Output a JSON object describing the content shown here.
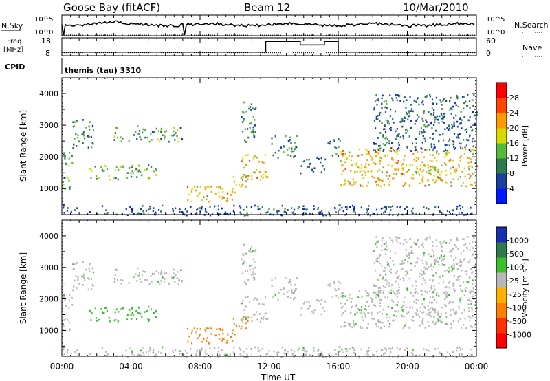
{
  "header": {
    "station": "Goose Bay (fitACF)",
    "beam": "Beam 12",
    "date": "10/Mar/2010"
  },
  "noise_panel": {
    "left_label": "N.Sky",
    "left_ticks": [
      "10^5",
      "10^0"
    ],
    "right_ticks": [
      "10^5",
      "10^0"
    ],
    "right_label": "N.Search"
  },
  "freq_panel": {
    "left_label_1": "Freq.",
    "left_label_2": "[MHz]",
    "left_ticks": [
      "18",
      "8"
    ],
    "right_ticks": [
      "60",
      "0"
    ],
    "right_label": "Nave",
    "cpid_label": "CPID",
    "cpid_value": "themis (tau) 3310"
  },
  "power_panel": {
    "ylabel": "Slant Range [km]",
    "yticks": [
      "4000",
      "3000",
      "2000",
      "1000"
    ],
    "colorbar_label": "Power [dB]",
    "colorbar_ticks": [
      "28",
      "24",
      "20",
      "16",
      "12",
      "8",
      "4"
    ],
    "colors": [
      "#0018ff",
      "#1a3f9c",
      "#2d7a4c",
      "#57b93b",
      "#d8d800",
      "#ff9a00",
      "#ff4500",
      "#ff0000"
    ]
  },
  "velocity_panel": {
    "ylabel": "Slant Range [km]",
    "yticks": [
      "4000",
      "3000",
      "2000",
      "1000"
    ],
    "colorbar_label": "Velocity [m s⁻¹]",
    "colorbar_ticks": [
      "1000",
      "500",
      "100",
      "25",
      "-25",
      "-100",
      "-500",
      "-1000"
    ],
    "colors": [
      "#1a2fb0",
      "#2d7a4c",
      "#3bbf2d",
      "#b8b8b8",
      "#ffb000",
      "#ff7f00",
      "#ff3000",
      "#ff0000"
    ]
  },
  "time_axis": {
    "ticks": [
      "00:00",
      "04:00",
      "08:00",
      "12:00",
      "16:00",
      "20:00",
      "00:00"
    ],
    "label": "Time UT"
  },
  "chart_data": {
    "type": "heatmap",
    "x_range_hours": [
      0,
      24
    ],
    "y_range_km": [
      180,
      4500
    ],
    "noise": {
      "sky_log10_level_approx": 4,
      "drop_times_hours": [
        0.1,
        7.1
      ]
    },
    "frequency": {
      "segments": [
        {
          "t0": 0,
          "t1": 11.8,
          "freq_mhz": 10
        },
        {
          "t0": 11.8,
          "t1": 13.8,
          "freq_mhz": 16
        },
        {
          "t0": 13.8,
          "t1": 15.2,
          "freq_mhz": 14
        },
        {
          "t0": 15.2,
          "t1": 16.0,
          "freq_mhz": 16
        },
        {
          "t0": 16.0,
          "t1": 24,
          "freq_mhz": 10
        }
      ],
      "nave_approx": 10
    },
    "scatter_regions": [
      {
        "t0": 0.0,
        "t1": 0.5,
        "r0": 900,
        "r1": 1400,
        "power_db": 12,
        "velocity": 25
      },
      {
        "t0": 0.0,
        "t1": 0.6,
        "r0": 1600,
        "r1": 2200,
        "power_db": 12,
        "velocity": 25
      },
      {
        "t0": 0.6,
        "t1": 1.8,
        "r0": 2300,
        "r1": 3200,
        "power_db": 10,
        "velocity": 25
      },
      {
        "t0": 1.5,
        "t1": 5.5,
        "r0": 1300,
        "r1": 1800,
        "power_db": 14,
        "velocity": 100
      },
      {
        "t0": 3.0,
        "t1": 7.0,
        "r0": 2500,
        "r1": 3000,
        "power_db": 12,
        "velocity": 25
      },
      {
        "t0": 7.2,
        "t1": 10.0,
        "r0": 600,
        "r1": 1100,
        "power_db": 20,
        "velocity": -100
      },
      {
        "t0": 9.8,
        "t1": 10.8,
        "r0": 1000,
        "r1": 1500,
        "power_db": 18,
        "velocity": -100
      },
      {
        "t0": 10.3,
        "t1": 11.9,
        "r0": 1300,
        "r1": 2100,
        "power_db": 20,
        "velocity": 25
      },
      {
        "t0": 10.3,
        "t1": 11.2,
        "r0": 2500,
        "r1": 3800,
        "power_db": 10,
        "velocity": 25
      },
      {
        "t0": 12.1,
        "t1": 13.6,
        "r0": 2000,
        "r1": 2700,
        "power_db": 10,
        "velocity": 25
      },
      {
        "t0": 13.7,
        "t1": 15.3,
        "r0": 1500,
        "r1": 2000,
        "power_db": 8,
        "velocity": 25
      },
      {
        "t0": 15.3,
        "t1": 16.1,
        "r0": 2000,
        "r1": 2600,
        "power_db": 10,
        "velocity": 25
      },
      {
        "t0": 16.1,
        "t1": 24.0,
        "r0": 1100,
        "r1": 2300,
        "power_db": 20,
        "velocity": 25
      },
      {
        "t0": 18.0,
        "t1": 24.0,
        "r0": 2200,
        "r1": 4000,
        "power_db": 8,
        "velocity": 25
      },
      {
        "t0": 0.0,
        "t1": 24.0,
        "r0": 180,
        "r1": 500,
        "power_db": 6,
        "velocity": 25
      }
    ]
  }
}
